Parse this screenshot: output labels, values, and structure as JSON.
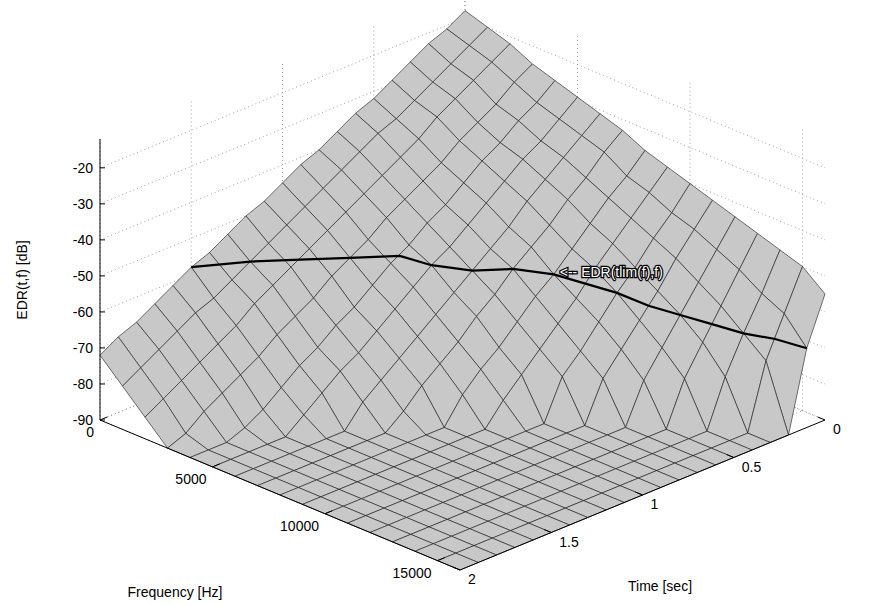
{
  "chart_data": {
    "type": "surface3d",
    "x_label": "Frequency [Hz]",
    "y_label": "Time [sec]",
    "z_label": "EDR(t,f) [dB]",
    "x": [
      0,
      1000,
      2000,
      3000,
      4000,
      5000,
      6000,
      7000,
      8000,
      9000,
      10000,
      11000,
      12000,
      13000,
      14000,
      15000,
      16000
    ],
    "y": [
      0,
      0.1,
      0.2,
      0.3,
      0.4,
      0.5,
      0.6,
      0.7,
      0.8,
      0.9,
      1,
      1.1,
      1.2,
      1.3,
      1.4,
      1.5,
      1.6,
      1.7,
      1.8,
      1.9,
      2
    ],
    "z": [
      [
        -18,
        -21,
        -23,
        -26,
        -29,
        -32,
        -34,
        -37,
        -40,
        -42,
        -45,
        -48,
        -50,
        -53,
        -56,
        -58,
        -61,
        -64,
        -67,
        -69,
        -72
      ],
      [
        -20,
        -23,
        -26,
        -29,
        -32,
        -35,
        -37,
        -40,
        -43,
        -46,
        -49,
        -52,
        -55,
        -58,
        -61,
        -64,
        -66,
        -69,
        -72,
        -75,
        -78
      ],
      [
        -22,
        -25,
        -28,
        -31,
        -34,
        -38,
        -41,
        -44,
        -47,
        -50,
        -53,
        -56,
        -59,
        -62,
        -65,
        -69,
        -72,
        -75,
        -78,
        -81,
        -84
      ],
      [
        -25,
        -28,
        -32,
        -35,
        -38,
        -42,
        -45,
        -48,
        -51,
        -55,
        -58,
        -61,
        -65,
        -68,
        -71,
        -75,
        -78,
        -81,
        -84,
        -88,
        -90
      ],
      [
        -27,
        -31,
        -34,
        -38,
        -41,
        -45,
        -49,
        -52,
        -56,
        -59,
        -63,
        -67,
        -70,
        -74,
        -77,
        -81,
        -85,
        -88,
        -90,
        -90,
        -90
      ],
      [
        -29,
        -33,
        -37,
        -40,
        -44,
        -48,
        -52,
        -56,
        -59,
        -63,
        -67,
        -71,
        -75,
        -78,
        -82,
        -86,
        -90,
        -90,
        -90,
        -90,
        -90
      ],
      [
        -31,
        -35,
        -39,
        -43,
        -47,
        -52,
        -56,
        -60,
        -64,
        -68,
        -72,
        -76,
        -80,
        -84,
        -90,
        -90,
        -90,
        -90,
        -90,
        -90,
        -90
      ],
      [
        -33,
        -37,
        -42,
        -46,
        -51,
        -55,
        -59,
        -64,
        -68,
        -73,
        -77,
        -81,
        -86,
        -90,
        -90,
        -90,
        -90,
        -90,
        -90,
        -90,
        -90
      ],
      [
        -36,
        -41,
        -45,
        -50,
        -55,
        -60,
        -64,
        -69,
        -74,
        -78,
        -83,
        -90,
        -90,
        -90,
        -90,
        -90,
        -90,
        -90,
        -90,
        -90,
        -90
      ],
      [
        -38,
        -43,
        -48,
        -53,
        -58,
        -64,
        -69,
        -74,
        -79,
        -84,
        -90,
        -90,
        -90,
        -90,
        -90,
        -90,
        -90,
        -90,
        -90,
        -90,
        -90
      ],
      [
        -40,
        -46,
        -51,
        -57,
        -62,
        -68,
        -74,
        -79,
        -90,
        -90,
        -90,
        -90,
        -90,
        -90,
        -90,
        -90,
        -90,
        -90,
        -90,
        -90,
        -90
      ],
      [
        -42,
        -48,
        -54,
        -61,
        -67,
        -73,
        -79,
        -90,
        -90,
        -90,
        -90,
        -90,
        -90,
        -90,
        -90,
        -90,
        -90,
        -90,
        -90,
        -90,
        -90
      ],
      [
        -44,
        -51,
        -58,
        -65,
        -72,
        -79,
        -90,
        -90,
        -90,
        -90,
        -90,
        -90,
        -90,
        -90,
        -90,
        -90,
        -90,
        -90,
        -90,
        -90,
        -90
      ],
      [
        -46,
        -54,
        -62,
        -70,
        -78,
        -90,
        -90,
        -90,
        -90,
        -90,
        -90,
        -90,
        -90,
        -90,
        -90,
        -90,
        -90,
        -90,
        -90,
        -90,
        -90
      ],
      [
        -48,
        -58,
        -67,
        -77,
        -90,
        -90,
        -90,
        -90,
        -90,
        -90,
        -90,
        -90,
        -90,
        -90,
        -90,
        -90,
        -90,
        -90,
        -90,
        -90,
        -90
      ],
      [
        -50,
        -61,
        -72,
        -90,
        -90,
        -90,
        -90,
        -90,
        -90,
        -90,
        -90,
        -90,
        -90,
        -90,
        -90,
        -90,
        -90,
        -90,
        -90,
        -90,
        -90
      ],
      [
        -55,
        -68,
        -90,
        -90,
        -90,
        -90,
        -90,
        -90,
        -90,
        -90,
        -90,
        -90,
        -90,
        -90,
        -90,
        -90,
        -90,
        -90,
        -90,
        -90,
        -90
      ]
    ],
    "xlim": [
      0,
      16000
    ],
    "xticks": [
      0,
      5000,
      10000,
      15000
    ],
    "ylim": [
      0,
      2
    ],
    "yticks": [
      0,
      0.5,
      1,
      1.5,
      2
    ],
    "zlim": [
      -90,
      -12
    ],
    "zticks": [
      -90,
      -80,
      -70,
      -60,
      -50,
      -40,
      -30,
      -20
    ],
    "grid": true,
    "color": "#c8c8c8",
    "series": [
      {
        "label": "<-- EDR(tlim(f),f)",
        "color": "#000000",
        "line_style": "solid",
        "x": [
          0,
          1000,
          2000,
          3000,
          4000,
          5000,
          6000,
          7000,
          8000,
          9000,
          10000,
          11000,
          12000,
          13000,
          14000,
          15000,
          16000
        ],
        "y": [
          1.5,
          1.3,
          1.15,
          1,
          0.85,
          0.8,
          0.7,
          0.6,
          0.5,
          0.45,
          0.4,
          0.35,
          0.3,
          0.25,
          0.2,
          0.15,
          0.1
        ],
        "z": [
          -58,
          -58,
          -58,
          -58,
          -58,
          -59,
          -60,
          -59,
          -60,
          -61,
          -62,
          -64,
          -65,
          -66,
          -67,
          -67,
          -68
        ]
      }
    ]
  }
}
